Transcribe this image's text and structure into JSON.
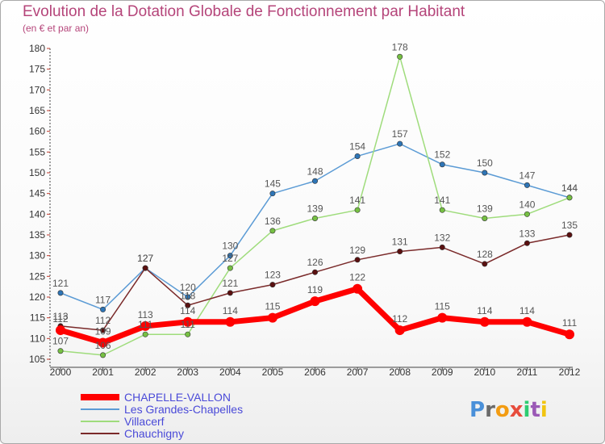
{
  "chart_data": {
    "type": "line",
    "title": "Evolution de la Dotation Globale de Fonctionnement par Habitant",
    "subtitle": "(en € et par an)",
    "x": [
      "2000",
      "2001",
      "2002",
      "2003",
      "2004",
      "2005",
      "2006",
      "2007",
      "2008",
      "2009",
      "2010",
      "2011",
      "2012"
    ],
    "ylim": [
      105,
      180
    ],
    "yticks": [
      105,
      110,
      115,
      120,
      125,
      130,
      135,
      140,
      145,
      150,
      155,
      160,
      165,
      170,
      175,
      180
    ],
    "grid": false,
    "legend_position": "bottom-left",
    "series": [
      {
        "name": "Les Grandes-Chapelles",
        "color": "#5b9bd5",
        "marker": "#2e75b6",
        "values": [
          121,
          117,
          127,
          120,
          130,
          145,
          148,
          154,
          157,
          152,
          150,
          147,
          144
        ]
      },
      {
        "name": "Villacerf",
        "color": "#9fdc7c",
        "marker": "#76c043",
        "values": [
          107,
          106,
          111,
          111,
          127,
          136,
          139,
          141,
          178,
          141,
          139,
          140,
          144
        ]
      },
      {
        "name": "Chauchigny",
        "color": "#7a2a2a",
        "marker": "#5a1010",
        "values": [
          113,
          112,
          127,
          118,
          121,
          123,
          126,
          129,
          131,
          132,
          128,
          133,
          135
        ]
      },
      {
        "name": "CHAPELLE-VALLON",
        "color": "#ff0000",
        "marker": "#ff0000",
        "values": [
          112,
          109,
          113,
          114,
          114,
          115,
          119,
          122,
          112,
          115,
          114,
          114,
          111
        ]
      }
    ],
    "legend": [
      {
        "name": "CHAPELLE-VALLON",
        "color": "#ff0000",
        "thick": true
      },
      {
        "name": "Les Grandes-Chapelles",
        "color": "#5b9bd5",
        "thick": false
      },
      {
        "name": "Villacerf",
        "color": "#9fdc7c",
        "thick": false
      },
      {
        "name": "Chauchigny",
        "color": "#7a2a2a",
        "thick": false
      }
    ]
  },
  "brand": {
    "name": "Proxiti",
    "letters": [
      "P",
      "r",
      "o",
      "x",
      "i",
      "t",
      "i"
    ],
    "colors": [
      "#4a90d9",
      "#6a6a6a",
      "#f39c12",
      "#e74c3c",
      "#2ecc71",
      "#9b59b6",
      "#f1c40f"
    ]
  }
}
